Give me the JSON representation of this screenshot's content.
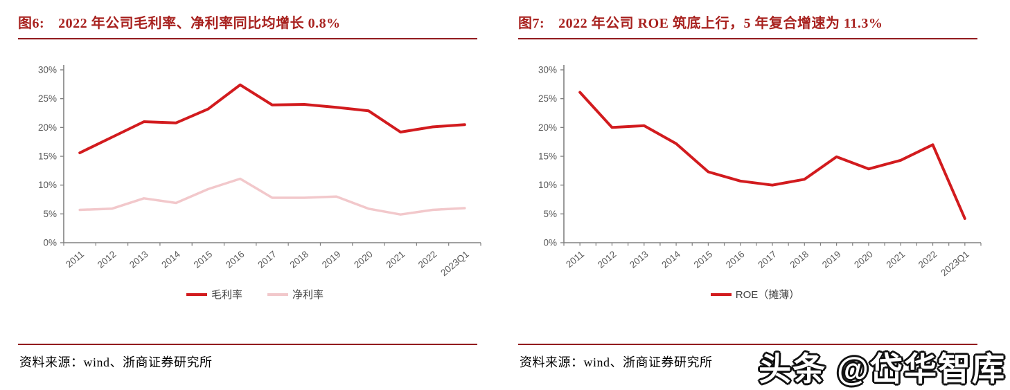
{
  "figures": [
    {
      "label": "图6:",
      "title": "2022 年公司毛利率、净利率同比均增长 0.8%",
      "source": "资料来源：wind、浙商证券研究所"
    },
    {
      "label": "图7:",
      "title": "2022 年公司 ROE 筑底上行，5 年复合增速为 11.3%",
      "source": "资料来源：wind、浙商证券研究所"
    }
  ],
  "watermark": {
    "text": "头条 @岱华智库"
  },
  "colors": {
    "title_red": "#A8221F",
    "rule_red": "#921B1E",
    "line_red": "#D21B1E",
    "line_pink": "#F2C8CB",
    "axis_gray": "#808080",
    "tick_label_gray": "#595959"
  },
  "chart_data": [
    {
      "type": "line",
      "title": "2022年公司毛利率、净利率同比均增长0.8%",
      "categories": [
        "2011",
        "2012",
        "2013",
        "2014",
        "2015",
        "2016",
        "2017",
        "2018",
        "2019",
        "2020",
        "2021",
        "2022",
        "2023Q1"
      ],
      "series": [
        {
          "name": "毛利率",
          "color": "#D21B1E",
          "stroke_width": 4,
          "values": [
            15.6,
            18.3,
            21.0,
            20.8,
            23.2,
            27.4,
            23.9,
            24.0,
            23.5,
            22.9,
            19.2,
            20.1,
            20.5
          ]
        },
        {
          "name": "净利率",
          "color": "#F2C8CB",
          "stroke_width": 3.5,
          "values": [
            5.7,
            5.9,
            7.7,
            6.9,
            9.3,
            11.1,
            7.8,
            7.8,
            8.0,
            5.9,
            4.9,
            5.7,
            6.0
          ]
        }
      ],
      "ylim": [
        0,
        30
      ],
      "yticks": [
        0,
        5,
        10,
        15,
        20,
        25,
        30
      ],
      "ytick_suffix": "%",
      "x_tick_density": 1,
      "grid": false,
      "legend_position": "bottom"
    },
    {
      "type": "line",
      "title": "2022年公司ROE筑底上行，5年复合增速为11.3%",
      "categories": [
        "2011",
        "2012",
        "2013",
        "2014",
        "2015",
        "2016",
        "2017",
        "2018",
        "2019",
        "2020",
        "2021",
        "2022",
        "2023Q1"
      ],
      "series": [
        {
          "name": "ROE（摊薄）",
          "color": "#D21B1E",
          "stroke_width": 4,
          "values": [
            26.1,
            20.0,
            20.3,
            17.2,
            12.3,
            10.7,
            10.0,
            11.0,
            14.9,
            12.8,
            14.3,
            17.0,
            4.2
          ]
        }
      ],
      "ylim": [
        0,
        30
      ],
      "yticks": [
        0,
        5,
        10,
        15,
        20,
        25,
        30
      ],
      "ytick_suffix": "%",
      "x_tick_density": 2,
      "grid": false,
      "legend_position": "bottom"
    }
  ]
}
